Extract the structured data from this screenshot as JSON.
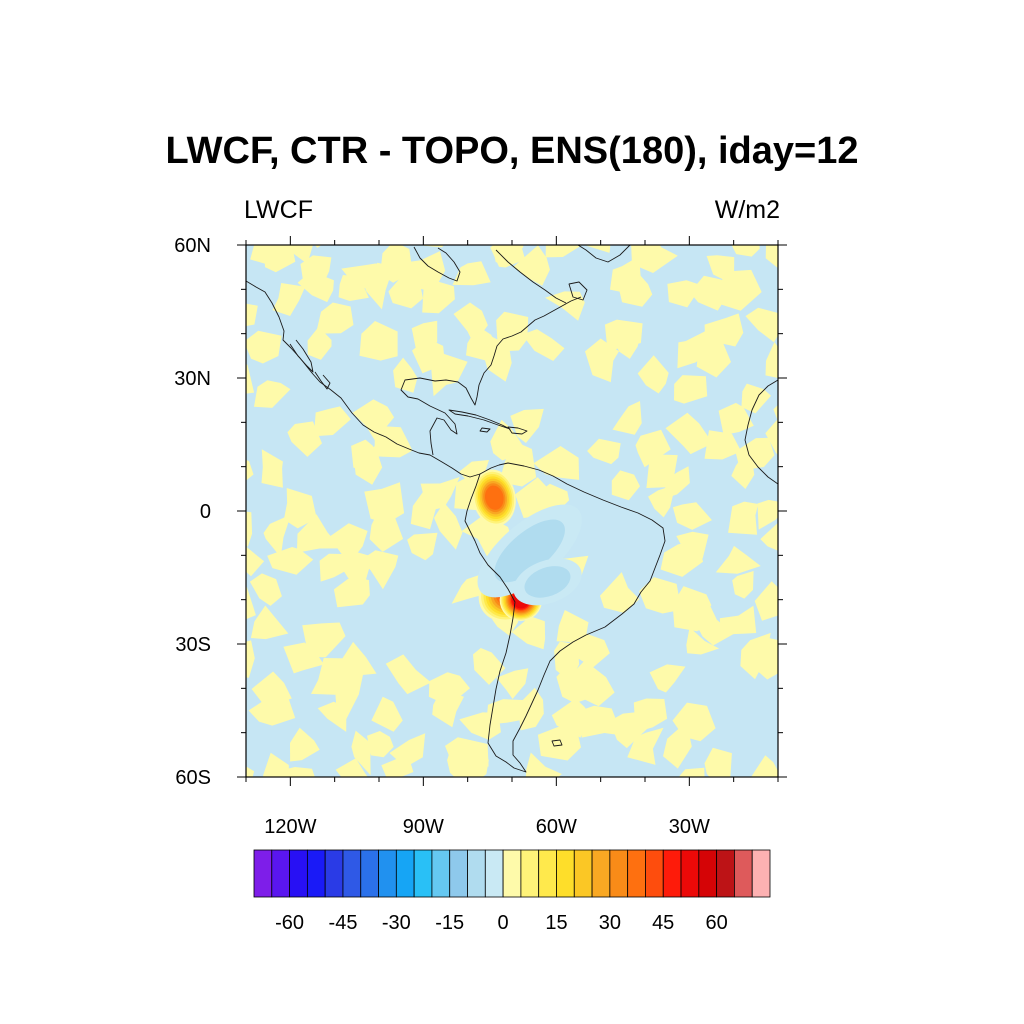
{
  "title": "LWCF, CTR - TOPO, ENS(180), iday=12",
  "left_string": "LWCF",
  "right_string": "W/m2",
  "map": {
    "projection": "cylindrical-equidistant",
    "lon_range": [
      -130,
      -10
    ],
    "lat_range": [
      -60,
      60
    ],
    "lat_ticks": [
      {
        "value": 60,
        "label": "60N"
      },
      {
        "value": 30,
        "label": "30N"
      },
      {
        "value": 0,
        "label": "0"
      },
      {
        "value": -30,
        "label": "30S"
      },
      {
        "value": -60,
        "label": "60S"
      }
    ],
    "lon_ticks": [
      {
        "value": -120,
        "label": "120W"
      },
      {
        "value": -90,
        "label": "90W"
      },
      {
        "value": -60,
        "label": "60W"
      },
      {
        "value": -30,
        "label": "30W"
      }
    ],
    "background_fill_color": "#c6e6f4",
    "noise_fill_color": "#fefaaa"
  },
  "colorbar": {
    "colors": [
      "#7e1ee9",
      "#5a16ef",
      "#2810f4",
      "#1a1af7",
      "#2a3be6",
      "#2f59e6",
      "#2b71ea",
      "#2191ef",
      "#16a5f5",
      "#29c0f6",
      "#65c8f1",
      "#8ec9ec",
      "#b0dcef",
      "#c9e9f4",
      "#fefaaa",
      "#fff379",
      "#ffe94c",
      "#fede2a",
      "#fbc725",
      "#f9a823",
      "#f98b18",
      "#fe7010",
      "#fe4d0d",
      "#fe1b0a",
      "#ec0908",
      "#d50406",
      "#bd1316",
      "#de5a5b",
      "#fdb1b2"
    ],
    "labels": [
      {
        "value": -60,
        "text": "-60"
      },
      {
        "value": -45,
        "text": "-45"
      },
      {
        "value": -30,
        "text": "-30"
      },
      {
        "value": -15,
        "text": "-15"
      },
      {
        "value": 0,
        "text": "0"
      },
      {
        "value": 15,
        "text": "15"
      },
      {
        "value": 30,
        "text": "30"
      },
      {
        "value": 45,
        "text": "45"
      },
      {
        "value": 60,
        "text": "60"
      }
    ]
  },
  "anomalies": [
    {
      "lon": -70,
      "lat": -18,
      "rlon": 5,
      "rlat": 4,
      "angle": -35,
      "value": 45
    },
    {
      "lon": -68,
      "lat": -20,
      "rlon": 3,
      "rlat": 3,
      "angle": 0,
      "value": 52
    },
    {
      "lon": -74,
      "lat": 3,
      "rlon": 3,
      "rlat": 4,
      "angle": -10,
      "value": 38
    },
    {
      "lon": -66,
      "lat": -9,
      "rlon": 9,
      "rlat": 4,
      "angle": -40,
      "value": -8
    },
    {
      "lon": -62,
      "lat": -16,
      "rlon": 5,
      "rlat": 3,
      "angle": -20,
      "value": -6
    }
  ]
}
